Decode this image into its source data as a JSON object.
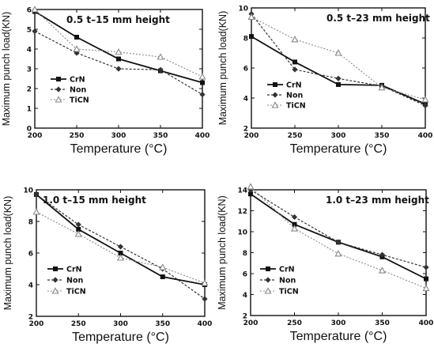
{
  "chart_data": [
    {
      "type": "line",
      "title": "0.5 t–15 mm height",
      "xlabel": "Temperature (°C)",
      "ylabel": "Maximum punch load(KN)",
      "x": [
        200,
        250,
        300,
        350,
        400
      ],
      "xticks": [
        "200",
        "250",
        "300",
        "350",
        "400"
      ],
      "ylim": [
        0,
        6
      ],
      "yticks": [
        "0",
        "1",
        "2",
        "3",
        "4",
        "5",
        "6"
      ],
      "legend_position": "left",
      "series": [
        {
          "name": "CrN",
          "values": [
            5.9,
            4.6,
            3.5,
            2.9,
            2.3
          ],
          "color": "#111111",
          "marker": "square"
        },
        {
          "name": "Non",
          "values": [
            4.9,
            3.8,
            3.0,
            2.95,
            1.7
          ],
          "color": "#333333",
          "marker": "diamond"
        },
        {
          "name": "TiCN",
          "values": [
            6.0,
            4.0,
            3.85,
            3.6,
            2.6
          ],
          "color": "#888888",
          "marker": "triangle"
        }
      ]
    },
    {
      "type": "line",
      "title": "0.5 t–23 mm height",
      "xlabel": "Temperature (°C)",
      "ylabel": "Maximum punch load(KN)",
      "x": [
        200,
        250,
        300,
        350,
        400
      ],
      "xticks": [
        "200",
        "250",
        "300",
        "350",
        "400"
      ],
      "ylim": [
        2,
        10
      ],
      "yticks": [
        "2",
        "4",
        "6",
        "8",
        "10"
      ],
      "legend_position": "bottom-left",
      "series": [
        {
          "name": "CrN",
          "values": [
            8.1,
            6.4,
            4.9,
            4.85,
            3.6
          ],
          "color": "#111111",
          "marker": "square"
        },
        {
          "name": "Non",
          "values": [
            9.6,
            5.9,
            5.3,
            4.8,
            3.5
          ],
          "color": "#333333",
          "marker": "diamond"
        },
        {
          "name": "TiCN",
          "values": [
            9.4,
            7.9,
            7.0,
            4.7,
            3.9
          ],
          "color": "#888888",
          "marker": "triangle"
        }
      ]
    },
    {
      "type": "line",
      "title": "1.0 t–15 mm height",
      "xlabel": "Temperature (°C)",
      "ylabel": "Maximum punch load(KN)",
      "x": [
        200,
        250,
        300,
        350,
        400
      ],
      "xticks": [
        "200",
        "250",
        "300",
        "350",
        "400"
      ],
      "ylim": [
        2,
        10
      ],
      "yticks": [
        "2",
        "4",
        "6",
        "8",
        "10"
      ],
      "legend_position": "bottom-left",
      "series": [
        {
          "name": "CrN",
          "values": [
            9.7,
            7.5,
            6.0,
            4.5,
            4.0
          ],
          "color": "#111111",
          "marker": "square"
        },
        {
          "name": "Non",
          "values": [
            9.7,
            7.8,
            6.4,
            5.0,
            3.1
          ],
          "color": "#333333",
          "marker": "diamond"
        },
        {
          "name": "TiCN",
          "values": [
            8.6,
            7.2,
            5.7,
            5.1,
            4.1
          ],
          "color": "#888888",
          "marker": "triangle"
        }
      ]
    },
    {
      "type": "line",
      "title": "1.0 t–23 mm height",
      "xlabel": "Temperature (°C)",
      "ylabel": "Maximum punch load(KN)",
      "x": [
        200,
        250,
        300,
        350,
        400
      ],
      "xticks": [
        "200",
        "250",
        "300",
        "350",
        "400"
      ],
      "ylim": [
        2,
        14
      ],
      "yticks": [
        "2",
        "4",
        "6",
        "8",
        "10",
        "12",
        "14"
      ],
      "legend_position": "bottom-left",
      "series": [
        {
          "name": "CrN",
          "values": [
            13.6,
            10.7,
            9.0,
            7.6,
            5.5
          ],
          "color": "#111111",
          "marker": "square"
        },
        {
          "name": "Non",
          "values": [
            14.0,
            11.4,
            9.0,
            7.8,
            6.6
          ],
          "color": "#333333",
          "marker": "diamond"
        },
        {
          "name": "TiCN",
          "values": [
            14.3,
            10.3,
            7.9,
            6.3,
            4.6
          ],
          "color": "#888888",
          "marker": "triangle"
        }
      ]
    }
  ]
}
